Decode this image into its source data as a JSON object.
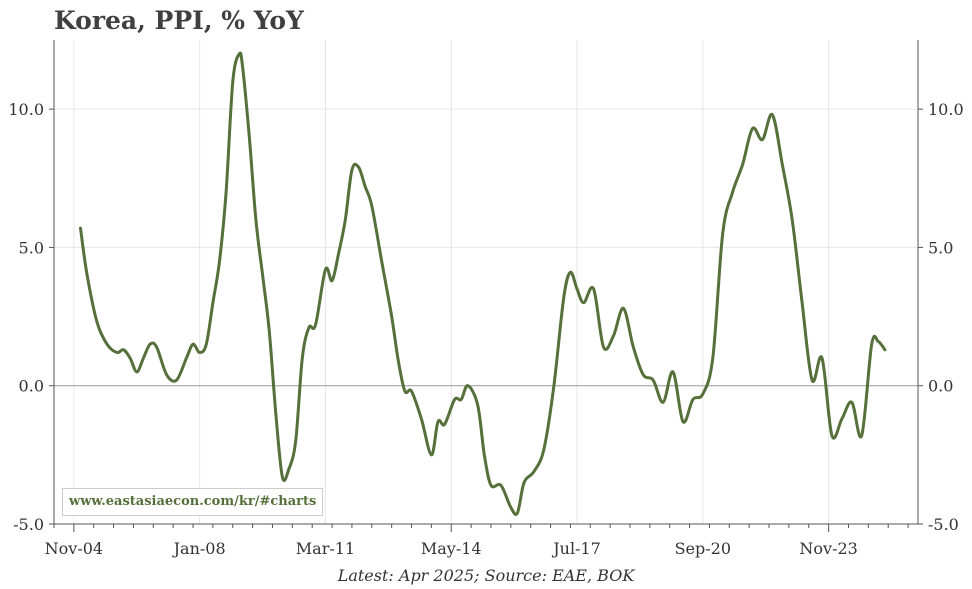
{
  "title": "Korea, PPI, % YoY",
  "footer": "Latest: Apr 2025; Source: EAE, BOK",
  "watermark": "www.eastasiaecon.com/kr/#charts",
  "colors": {
    "series": "#55703a",
    "grid": "#e6e6e6",
    "zero_line": "#999999",
    "axis": "#555555"
  },
  "chart_data": {
    "type": "line",
    "title": "Korea, PPI, % YoY",
    "xlabel": "",
    "ylabel": "",
    "x_range": [
      "2004-05",
      "2026-02"
    ],
    "ylim": [
      -5.0,
      12.5
    ],
    "y_ticks": [
      -5.0,
      0.0,
      5.0,
      10.0
    ],
    "y_tick_labels": [
      "-5.0",
      "0.0",
      "5.0",
      "10.0"
    ],
    "x_ticks": [
      "2004-11",
      "2008-01",
      "2011-03",
      "2014-05",
      "2017-07",
      "2020-09",
      "2023-11"
    ],
    "x_tick_labels": [
      "Nov-04",
      "Jan-08",
      "Mar-11",
      "May-14",
      "Jul-17",
      "Sep-20",
      "Nov-23"
    ],
    "grid": true,
    "right_axis": true,
    "series": [
      {
        "color": "#55703a",
        "points": [
          [
            "2005-01",
            5.7
          ],
          [
            "2005-03",
            4.0
          ],
          [
            "2005-06",
            2.3
          ],
          [
            "2005-09",
            1.5
          ],
          [
            "2005-12",
            1.2
          ],
          [
            "2006-02",
            1.3
          ],
          [
            "2006-04",
            1.0
          ],
          [
            "2006-06",
            0.5
          ],
          [
            "2006-08",
            1.0
          ],
          [
            "2006-10",
            1.5
          ],
          [
            "2006-12",
            1.4
          ],
          [
            "2007-03",
            0.4
          ],
          [
            "2007-06",
            0.2
          ],
          [
            "2007-09",
            1.0
          ],
          [
            "2007-11",
            1.5
          ],
          [
            "2008-01",
            1.2
          ],
          [
            "2008-03",
            1.5
          ],
          [
            "2008-05",
            3.0
          ],
          [
            "2008-07",
            4.5
          ],
          [
            "2008-09",
            7.0
          ],
          [
            "2008-11",
            11.0
          ],
          [
            "2009-01",
            12.0
          ],
          [
            "2009-02",
            11.5
          ],
          [
            "2009-04",
            9.0
          ],
          [
            "2009-06",
            6.0
          ],
          [
            "2009-08",
            4.0
          ],
          [
            "2009-10",
            2.0
          ],
          [
            "2009-12",
            -1.0
          ],
          [
            "2010-02",
            -3.3
          ],
          [
            "2010-04",
            -3.0
          ],
          [
            "2010-06",
            -2.0
          ],
          [
            "2010-08",
            1.0
          ],
          [
            "2010-10",
            2.1
          ],
          [
            "2010-12",
            2.2
          ],
          [
            "2011-03",
            4.2
          ],
          [
            "2011-05",
            3.8
          ],
          [
            "2011-07",
            4.8
          ],
          [
            "2011-09",
            6.0
          ],
          [
            "2011-11",
            7.8
          ],
          [
            "2012-01",
            7.9
          ],
          [
            "2012-03",
            7.2
          ],
          [
            "2012-05",
            6.5
          ],
          [
            "2012-08",
            4.5
          ],
          [
            "2012-11",
            2.5
          ],
          [
            "2013-01",
            0.9
          ],
          [
            "2013-03",
            -0.2
          ],
          [
            "2013-05",
            -0.2
          ],
          [
            "2013-08",
            -1.2
          ],
          [
            "2013-11",
            -2.5
          ],
          [
            "2014-01",
            -1.3
          ],
          [
            "2014-03",
            -1.4
          ],
          [
            "2014-06",
            -0.5
          ],
          [
            "2014-08",
            -0.5
          ],
          [
            "2014-10",
            0.0
          ],
          [
            "2015-01",
            -0.7
          ],
          [
            "2015-03",
            -2.5
          ],
          [
            "2015-05",
            -3.6
          ],
          [
            "2015-08",
            -3.6
          ],
          [
            "2015-11",
            -4.4
          ],
          [
            "2016-01",
            -4.6
          ],
          [
            "2016-03",
            -3.5
          ],
          [
            "2016-06",
            -3.1
          ],
          [
            "2016-09",
            -2.3
          ],
          [
            "2016-12",
            0.0
          ],
          [
            "2017-03",
            3.2
          ],
          [
            "2017-05",
            4.1
          ],
          [
            "2017-07",
            3.5
          ],
          [
            "2017-09",
            3.0
          ],
          [
            "2017-12",
            3.5
          ],
          [
            "2018-03",
            1.4
          ],
          [
            "2018-06",
            1.8
          ],
          [
            "2018-09",
            2.8
          ],
          [
            "2018-12",
            1.4
          ],
          [
            "2019-03",
            0.4
          ],
          [
            "2019-06",
            0.2
          ],
          [
            "2019-09",
            -0.6
          ],
          [
            "2019-12",
            0.5
          ],
          [
            "2020-03",
            -1.3
          ],
          [
            "2020-06",
            -0.5
          ],
          [
            "2020-09",
            -0.3
          ],
          [
            "2020-12",
            1.0
          ],
          [
            "2021-03",
            5.5
          ],
          [
            "2021-06",
            7.0
          ],
          [
            "2021-09",
            8.0
          ],
          [
            "2021-12",
            9.3
          ],
          [
            "2022-03",
            8.9
          ],
          [
            "2022-06",
            9.8
          ],
          [
            "2022-09",
            8.0
          ],
          [
            "2022-12",
            6.0
          ],
          [
            "2023-03",
            3.0
          ],
          [
            "2023-06",
            0.2
          ],
          [
            "2023-09",
            1.0
          ],
          [
            "2023-12",
            -1.8
          ],
          [
            "2024-03",
            -1.2
          ],
          [
            "2024-06",
            -0.6
          ],
          [
            "2024-09",
            -1.8
          ],
          [
            "2024-12",
            1.5
          ],
          [
            "2025-02",
            1.6
          ],
          [
            "2025-04",
            1.3
          ]
        ]
      }
    ]
  }
}
